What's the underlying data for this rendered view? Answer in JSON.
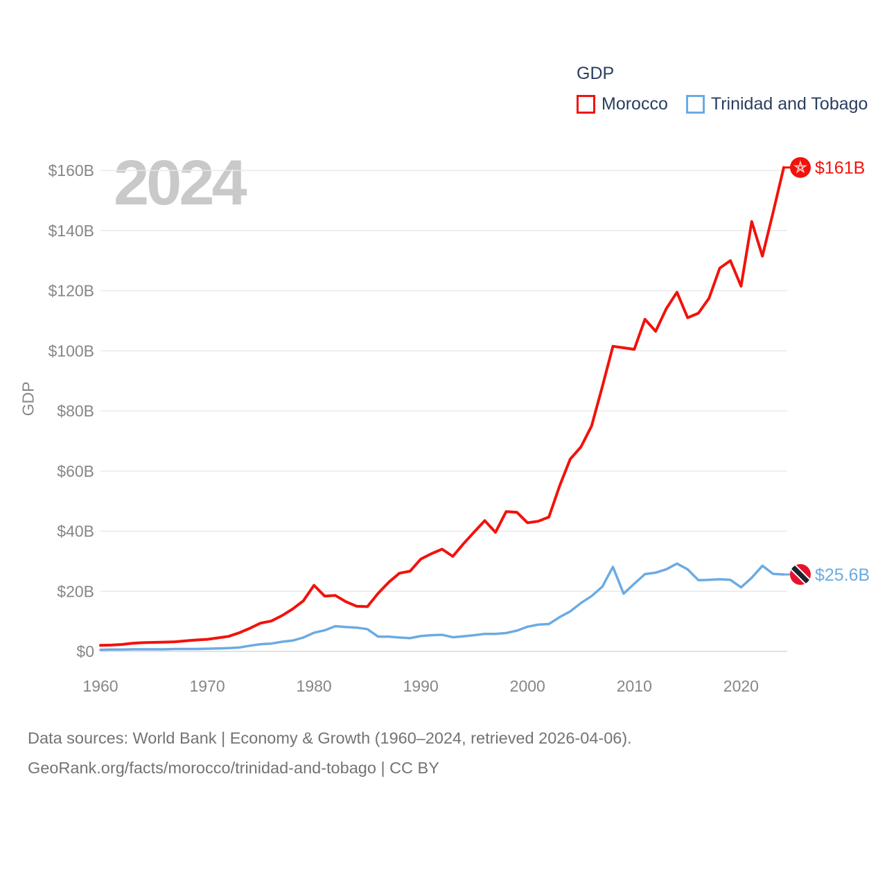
{
  "legend": {
    "title": "GDP"
  },
  "watermark": {
    "year": "2024"
  },
  "y_axis": {
    "title": "GDP"
  },
  "footer": {
    "line1": "Data sources: World Bank | Economy & Growth (1960–2024, retrieved 2026-04-06).",
    "line2": "GeoRank.org/facts/morocco/trinidad-and-tobago | CC BY"
  },
  "chart_data": {
    "type": "line",
    "title": "GDP",
    "ylabel": "GDP",
    "grid": true,
    "legend_position": "top-right",
    "x_range": [
      1960,
      2024
    ],
    "ylim": [
      0,
      160
    ],
    "x": [
      1960,
      1961,
      1962,
      1963,
      1964,
      1965,
      1966,
      1967,
      1968,
      1969,
      1970,
      1971,
      1972,
      1973,
      1974,
      1975,
      1976,
      1977,
      1978,
      1979,
      1980,
      1981,
      1982,
      1983,
      1984,
      1985,
      1986,
      1987,
      1988,
      1989,
      1990,
      1991,
      1992,
      1993,
      1994,
      1995,
      1996,
      1997,
      1998,
      1999,
      2000,
      2001,
      2002,
      2003,
      2004,
      2005,
      2006,
      2007,
      2008,
      2009,
      2010,
      2011,
      2012,
      2013,
      2014,
      2015,
      2016,
      2017,
      2018,
      2019,
      2020,
      2021,
      2022,
      2023,
      2024
    ],
    "series": [
      {
        "name": "Morocco",
        "color": "#f2120c",
        "end_label": "$161B",
        "flag_icon": "morocco-flag",
        "values": [
          2.0,
          2.1,
          2.3,
          2.7,
          2.9,
          3.0,
          3.1,
          3.2,
          3.5,
          3.8,
          4.0,
          4.5,
          5.0,
          6.2,
          7.7,
          9.4,
          10.1,
          11.9,
          14.1,
          16.8,
          22.0,
          18.4,
          18.6,
          16.5,
          15.0,
          14.9,
          19.3,
          23.0,
          26.0,
          26.7,
          30.7,
          32.5,
          34.0,
          31.6,
          35.8,
          39.7,
          43.5,
          39.6,
          46.5,
          46.3,
          42.8,
          43.3,
          44.7,
          55.0,
          64.0,
          68.0,
          75.0,
          88.0,
          101.5,
          101.0,
          100.5,
          110.5,
          106.5,
          114.0,
          119.5,
          111.0,
          112.5,
          117.5,
          127.5,
          130.0,
          121.5,
          143.0,
          131.5,
          146.0,
          161.0
        ]
      },
      {
        "name": "Trinidad and Tobago",
        "color": "#6babe3",
        "end_label": "$25.6B",
        "flag_icon": "trinidad-and-tobago-flag",
        "values": [
          0.5,
          0.6,
          0.6,
          0.7,
          0.7,
          0.7,
          0.7,
          0.8,
          0.8,
          0.8,
          0.9,
          1.0,
          1.1,
          1.3,
          1.9,
          2.4,
          2.6,
          3.2,
          3.6,
          4.6,
          6.2,
          7.0,
          8.4,
          8.1,
          7.9,
          7.4,
          4.9,
          4.9,
          4.6,
          4.4,
          5.1,
          5.4,
          5.5,
          4.7,
          5.0,
          5.4,
          5.8,
          5.8,
          6.1,
          6.9,
          8.2,
          8.9,
          9.1,
          11.4,
          13.3,
          16.1,
          18.4,
          21.5,
          28.1,
          19.2,
          22.5,
          25.7,
          26.2,
          27.3,
          29.2,
          27.3,
          23.7,
          23.8,
          24.0,
          23.8,
          21.3,
          24.5,
          28.5,
          25.8,
          25.6
        ]
      }
    ],
    "yticks": [
      {
        "value": 0,
        "label": "$0"
      },
      {
        "value": 20,
        "label": "$20B"
      },
      {
        "value": 40,
        "label": "$40B"
      },
      {
        "value": 60,
        "label": "$60B"
      },
      {
        "value": 80,
        "label": "$80B"
      },
      {
        "value": 100,
        "label": "$100B"
      },
      {
        "value": 120,
        "label": "$120B"
      },
      {
        "value": 140,
        "label": "$140B"
      },
      {
        "value": 160,
        "label": "$160B"
      }
    ],
    "xticks": [
      {
        "value": 1960,
        "label": "1960"
      },
      {
        "value": 1970,
        "label": "1970"
      },
      {
        "value": 1980,
        "label": "1980"
      },
      {
        "value": 1990,
        "label": "1990"
      },
      {
        "value": 2000,
        "label": "2000"
      },
      {
        "value": 2010,
        "label": "2010"
      },
      {
        "value": 2020,
        "label": "2020"
      }
    ]
  }
}
